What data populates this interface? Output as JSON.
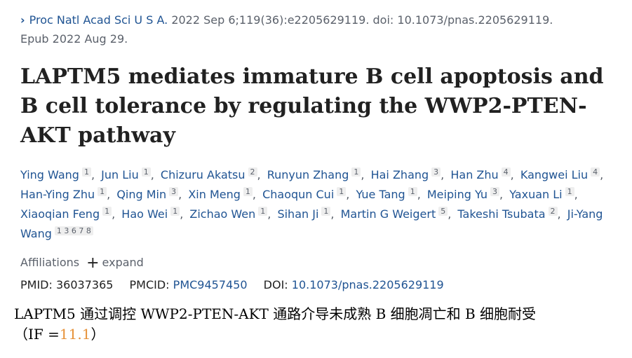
{
  "citation": {
    "journal": "Proc Natl Acad Sci U S A.",
    "details": "2022 Sep 6;119(36):e2205629119. doi: 10.1073/pnas.2205629119.",
    "epub": "Epub 2022 Aug 29."
  },
  "title": "LAPTM5 mediates immature B cell apoptosis and B cell tolerance by regulating the WWP2-PTEN-AKT pathway",
  "authors": [
    {
      "name": "Ying Wang",
      "aff": "1"
    },
    {
      "name": "Jun Liu",
      "aff": "1"
    },
    {
      "name": "Chizuru Akatsu",
      "aff": "2"
    },
    {
      "name": "Runyun Zhang",
      "aff": "1"
    },
    {
      "name": "Hai Zhang",
      "aff": "3"
    },
    {
      "name": "Han Zhu",
      "aff": "4"
    },
    {
      "name": "Kangwei Liu",
      "aff": "4"
    },
    {
      "name": "Han-Ying Zhu",
      "aff": "1"
    },
    {
      "name": "Qing Min",
      "aff": "3"
    },
    {
      "name": "Xin Meng",
      "aff": "1"
    },
    {
      "name": "Chaoqun Cui",
      "aff": "1"
    },
    {
      "name": "Yue Tang",
      "aff": "1"
    },
    {
      "name": "Meiping Yu",
      "aff": "3"
    },
    {
      "name": "Yaxuan Li",
      "aff": "1"
    },
    {
      "name": "Xiaoqian Feng",
      "aff": "1"
    },
    {
      "name": "Hao Wei",
      "aff": "1"
    },
    {
      "name": "Zichao Wen",
      "aff": "1"
    },
    {
      "name": "Sihan Ji",
      "aff": "1"
    },
    {
      "name": "Martin G Weigert",
      "aff": "5"
    },
    {
      "name": "Takeshi Tsubata",
      "aff": "2"
    },
    {
      "name": "Ji-Yang Wang",
      "aff": "1 3 6 7 8"
    }
  ],
  "affiliations": {
    "label": "Affiliations",
    "expand": "expand"
  },
  "ids": {
    "pmid_label": "PMID:",
    "pmid": "36037365",
    "pmcid_label": "PMCID:",
    "pmcid": "PMC9457450",
    "doi_label": "DOI:",
    "doi": "10.1073/pnas.2205629119"
  },
  "chinese": {
    "line1": "LAPTM5 通过调控 WWP2-PTEN-AKT 通路介导未成熟 B 细胞凋亡和 B 细胞耐受",
    "if_prefix": "（IF =",
    "if_value": "11.1",
    "if_suffix": "）",
    "if_color": "#e69138"
  }
}
